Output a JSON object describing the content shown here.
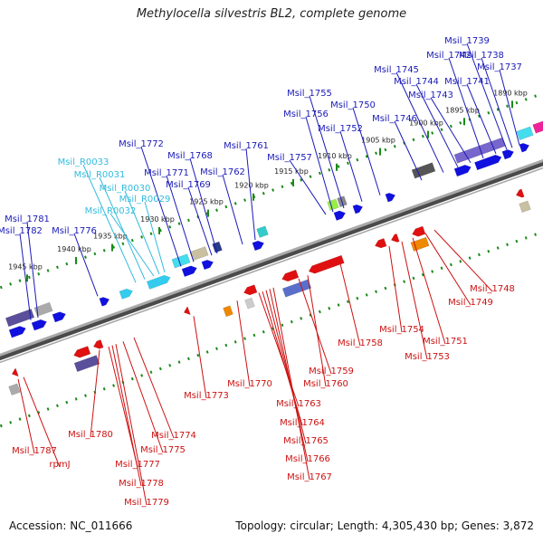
{
  "title": "Methylocella silvestris BL2, complete genome",
  "footer": {
    "accession": "Accession: NC_011666",
    "summary": "Topology: circular; Length: 4,305,430 bp; Genes: 3,872"
  },
  "colors": {
    "forward_gene": "#1010e0",
    "reverse_gene": "#e01010",
    "rna_gene": "#33ccee",
    "forward_label": "#1a1ab8",
    "reverse_label": "#cc1111",
    "rna_label": "#33bbdd",
    "scale_tick": "#1a8a1a",
    "backbone": "#808080"
  },
  "scale_ticks": [
    "1890 kbp",
    "1895 kbp",
    "1900 kbp",
    "1905 kbp",
    "1910 kbp",
    "1915 kbp",
    "1920 kbp",
    "1925 kbp",
    "1930 kbp",
    "1935 kbp",
    "1940 kbp",
    "1945 kbp"
  ],
  "forward_genes": [
    "Msil_1781",
    "Msil_1782",
    "Msil_1776",
    "Msil_1772",
    "Msil_1771",
    "Msil_1769",
    "Msil_1768",
    "Msil_1762",
    "Msil_1761",
    "Msil_1757",
    "Msil_1756",
    "Msil_1755",
    "Msil_1752",
    "Msil_1750",
    "Msil_1746",
    "Msil_1745",
    "Msil_1744",
    "Msil_1743",
    "Msil_1742",
    "Msil_1741",
    "Msil_1739",
    "Msil_1738",
    "Msil_1737"
  ],
  "rna_genes": [
    "Msil_R0033",
    "Msil_R0031",
    "Msil_R0030",
    "Msil_R0029",
    "Msil_R0032"
  ],
  "reverse_genes": [
    "Msil_1787",
    "rpmJ",
    "Msil_1780",
    "Msil_1777",
    "Msil_1778",
    "Msil_1779",
    "Msil_1775",
    "Msil_1774",
    "Msil_1773",
    "Msil_1770",
    "Msil_1763",
    "Msil_1764",
    "Msil_1765",
    "Msil_1766",
    "Msil_1767",
    "Msil_1759",
    "Msil_1760",
    "Msil_1758",
    "Msil_1754",
    "Msil_1753",
    "Msil_1751",
    "Msil_1749",
    "Msil_1748"
  ]
}
